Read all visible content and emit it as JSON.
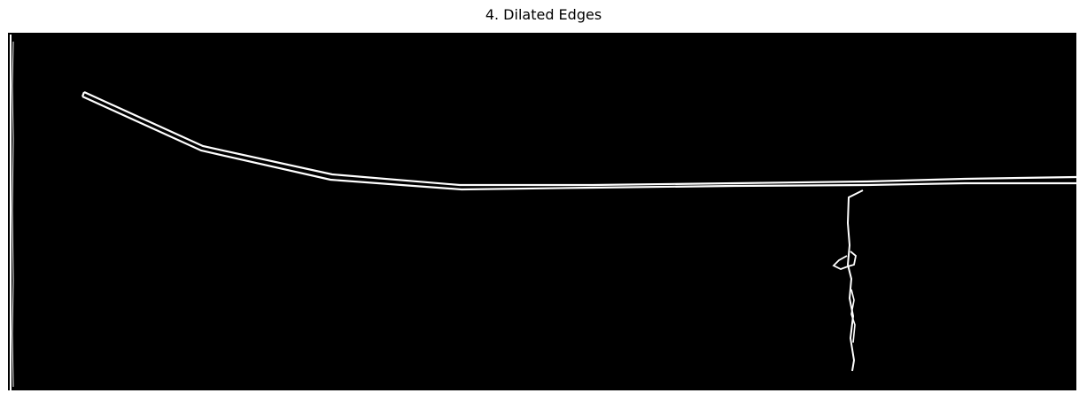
{
  "figure": {
    "title": "4. Dilated Edges"
  },
  "image": {
    "background_color": "#000000",
    "edge_color": "#ffffff"
  }
}
